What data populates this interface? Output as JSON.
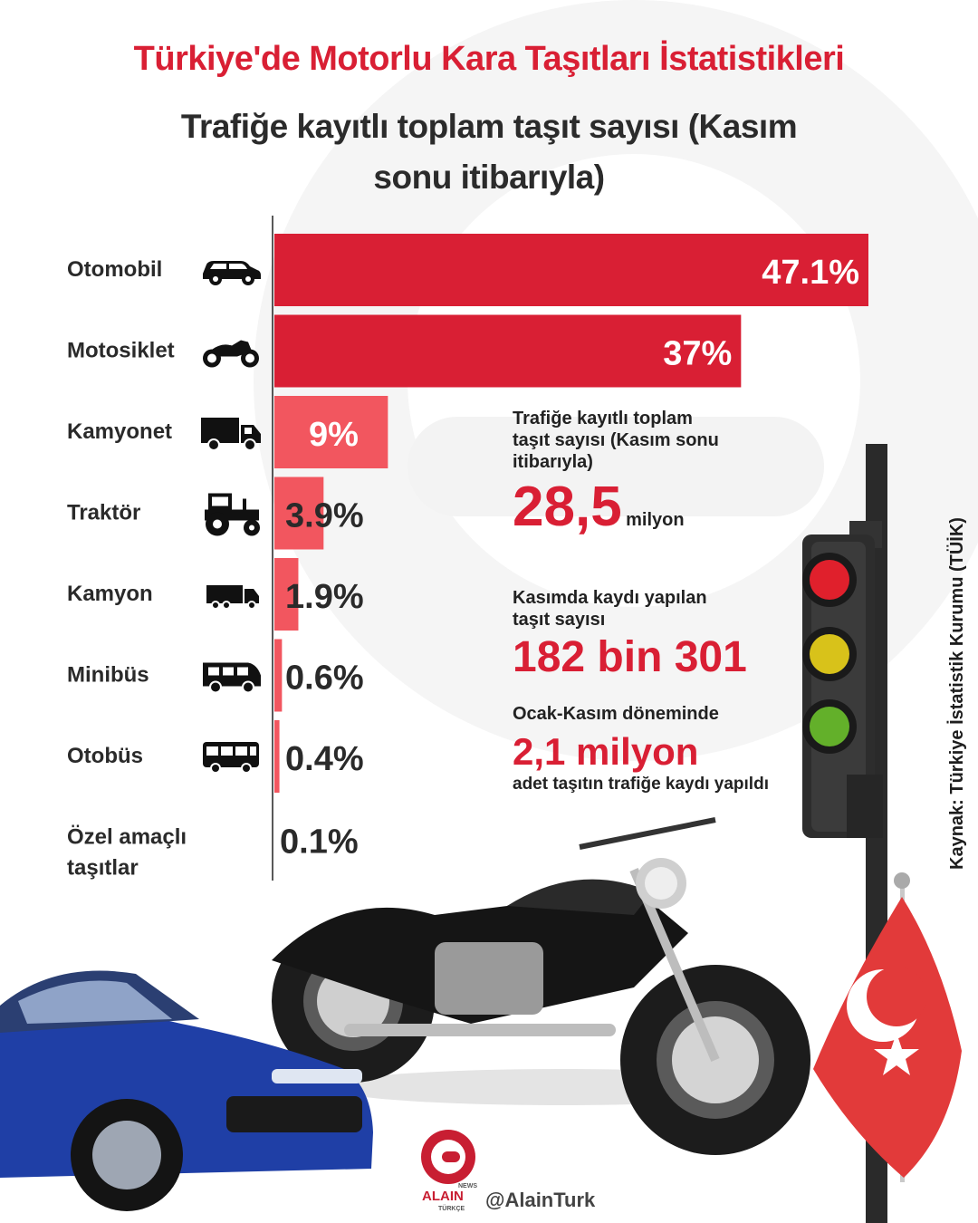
{
  "title": "Türkiye'de Motorlu Kara Taşıtları İstatistikleri",
  "subtitle": "Trafiğe kayıtlı toplam taşıt sayısı (Kasım sonu itibarıyla)",
  "colors": {
    "primary_red": "#d91f34",
    "light_red": "#f2565f",
    "text_dark": "#2b2b2b"
  },
  "chart_data": {
    "type": "bar",
    "orientation": "horizontal",
    "categories": [
      "Otomobil",
      "Motosiklet",
      "Kamyonet",
      "Traktör",
      "Kamyon",
      "Minibüs",
      "Otobüs",
      "Özel amaçlı taşıtlar"
    ],
    "values": [
      47.1,
      37,
      9,
      3.9,
      1.9,
      0.6,
      0.4,
      0.1
    ],
    "value_labels": [
      "47.1%",
      "37%",
      "9%",
      "3.9%",
      "1.9%",
      "0.6%",
      "0.4%",
      "0.1%"
    ],
    "icons": [
      "car-icon",
      "motorcycle-icon",
      "van-icon",
      "tractor-icon",
      "truck-icon",
      "minibus-icon",
      "bus-icon",
      ""
    ],
    "unit": "%",
    "xlim": [
      0,
      47.1
    ],
    "grid": false,
    "legend": "none"
  },
  "stats": {
    "total_label": "Trafiğe kayıtlı toplam taşıt sayısı (Kasım sonu itibarıyla)",
    "total_value": "28,5",
    "total_unit": "milyon",
    "november_label": "Kasımda kaydı yapılan taşıt sayısı",
    "november_value": "182 bin 301",
    "period_label": "Ocak-Kasım döneminde",
    "period_value": "2,1 milyon",
    "period_note": "adet taşıtın trafiğe kaydı yapıldı"
  },
  "source": "Kaynak: Türkiye İstatistik Kurumu (TÜİK)",
  "brand": {
    "name": "ALAIN",
    "news": "NEWS",
    "edition": "TÜRKÇE",
    "handle": "@AlainTurk"
  }
}
